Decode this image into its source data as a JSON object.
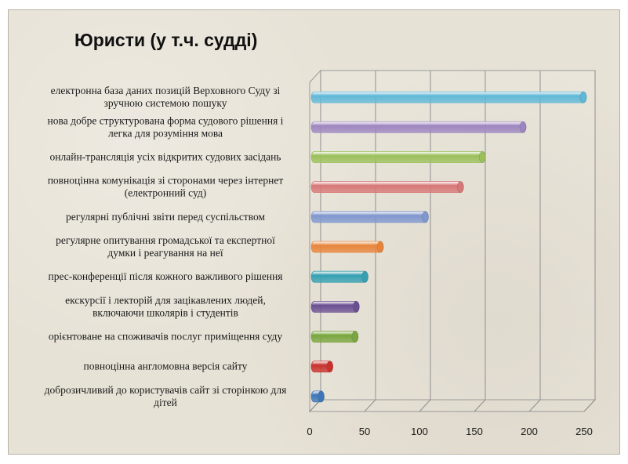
{
  "chart_data": {
    "type": "bar",
    "orientation": "horizontal",
    "title": "Юристи (у т.ч. судді)",
    "xlabel": "",
    "ylabel": "",
    "xlim": [
      0,
      250
    ],
    "ticks": [
      0,
      50,
      100,
      150,
      200,
      250
    ],
    "grid": true,
    "legend": "none",
    "categories": [
      [
        "електронна база даних позицій Верховного Суду зі",
        "зручною системою пошуку"
      ],
      [
        "нова добре структурована форма судового рішення і",
        "легка для розуміння мова"
      ],
      [
        "онлайн-трансляція усіх відкритих судових засідань"
      ],
      [
        "повноцінна комунікація зі сторонами через інтернет",
        "(електронний суд)"
      ],
      [
        "регулярні публічні звіти перед суспільством"
      ],
      [
        "регулярне опитування громадської та експертної",
        "думки і реагування на неї"
      ],
      [
        "прес-конференції після кожного важливого рішення"
      ],
      [
        "екскурсії і лекторій для зацікавлених людей,",
        "включаючи школярів і студентів"
      ],
      [
        "орієнтоване на споживачів послуг приміщення суду"
      ],
      [
        "повноцінна англомовна версія сайту"
      ],
      [
        "доброзичливий до користувачів сайт зі сторінкою для",
        "дітей"
      ]
    ],
    "values": [
      245,
      190,
      153,
      133,
      101,
      60,
      46,
      38,
      37,
      14,
      6
    ],
    "colors": [
      "#5fb8d8",
      "#9d86c0",
      "#9bc05a",
      "#d77777",
      "#7f97cf",
      "#e8843a",
      "#34a0b2",
      "#6a4f92",
      "#79a63e",
      "#c9302c",
      "#3d76b8"
    ]
  }
}
